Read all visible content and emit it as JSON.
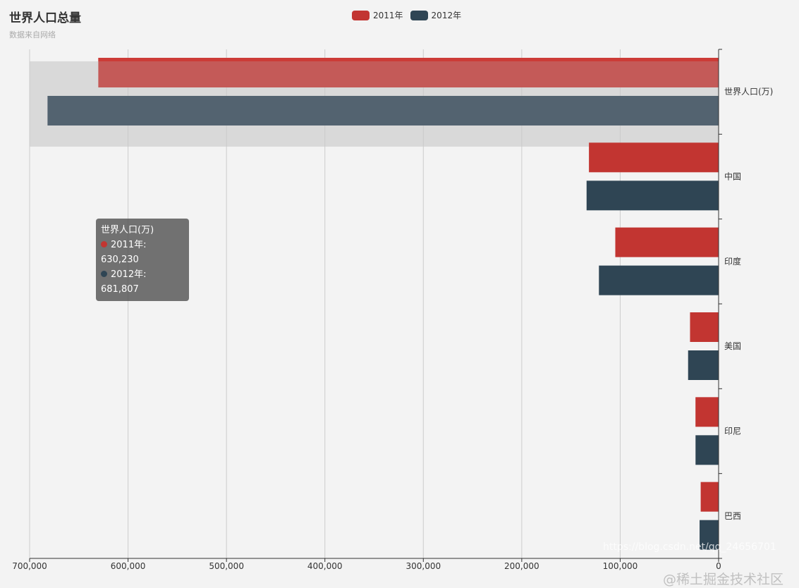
{
  "chart_data": {
    "type": "bar",
    "orientation": "horizontal",
    "title": "世界人口总量",
    "subtitle": "数据来自网络",
    "categories": [
      "巴西",
      "印尼",
      "美国",
      "印度",
      "中国",
      "世界人口(万)"
    ],
    "series": [
      {
        "name": "2011年",
        "color": "#c23531",
        "values": [
          18203,
          23489,
          29034,
          104970,
          131744,
          630230
        ]
      },
      {
        "name": "2012年",
        "color": "#2f4554",
        "values": [
          19325,
          23438,
          31000,
          121594,
          134141,
          681807
        ]
      }
    ],
    "xlim": [
      0,
      700000
    ],
    "x_inverse": true,
    "x_ticks": [
      "0",
      "100,000",
      "200,000",
      "300,000",
      "400,000",
      "500,000",
      "600,000",
      "700,000"
    ],
    "y_axis_position": "right",
    "grid": true,
    "legend_placement": "top-center",
    "tooltip": {
      "title": "世界人口(万)",
      "rows": [
        "2011年: 630,230",
        "2012年: 681,807"
      ]
    }
  },
  "watermark": {
    "line1": "@稀土掘金技术社区",
    "line2": "https://blog.csdn.net/qq_24656701"
  }
}
